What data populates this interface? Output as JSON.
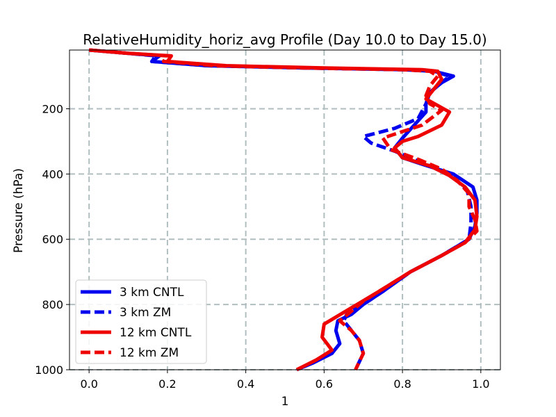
{
  "chart_data": {
    "type": "line",
    "title": "RelativeHumidity_horiz_avg Profile (Day 10.0 to Day 15.0)",
    "xlabel": "1",
    "ylabel": "Pressure (hPa)",
    "xlim": [
      -0.05,
      1.05
    ],
    "ylim": [
      1000,
      20
    ],
    "y_inverted": true,
    "grid": true,
    "xticks": [
      0.0,
      0.2,
      0.4,
      0.6,
      0.8,
      1.0
    ],
    "xtick_labels": [
      "0.0",
      "0.2",
      "0.4",
      "0.6",
      "0.8",
      "1.0"
    ],
    "yticks": [
      200,
      400,
      600,
      800,
      1000
    ],
    "ytick_labels": [
      "200",
      "400",
      "600",
      "800",
      "1000"
    ],
    "legend_position": "lower-left",
    "series": [
      {
        "name": "3 km CNTL",
        "color": "#0000ee",
        "dash": "solid",
        "points": [
          [
            0.0,
            20
          ],
          [
            0.1,
            30
          ],
          [
            0.18,
            38
          ],
          [
            0.16,
            55
          ],
          [
            0.3,
            68
          ],
          [
            0.55,
            75
          ],
          [
            0.8,
            80
          ],
          [
            0.88,
            85
          ],
          [
            0.93,
            100
          ],
          [
            0.9,
            120
          ],
          [
            0.87,
            150
          ],
          [
            0.86,
            185
          ],
          [
            0.86,
            210
          ],
          [
            0.83,
            250
          ],
          [
            0.8,
            290
          ],
          [
            0.78,
            320
          ],
          [
            0.8,
            350
          ],
          [
            0.85,
            370
          ],
          [
            0.93,
            400
          ],
          [
            0.98,
            440
          ],
          [
            0.99,
            480
          ],
          [
            0.99,
            520
          ],
          [
            0.985,
            560
          ],
          [
            0.97,
            600
          ],
          [
            0.9,
            650
          ],
          [
            0.82,
            700
          ],
          [
            0.75,
            760
          ],
          [
            0.7,
            800
          ],
          [
            0.67,
            830
          ],
          [
            0.635,
            850
          ],
          [
            0.63,
            880
          ],
          [
            0.64,
            920
          ],
          [
            0.62,
            950
          ],
          [
            0.57,
            980
          ],
          [
            0.53,
            1000
          ]
        ]
      },
      {
        "name": "3 km ZM",
        "color": "#0000ee",
        "dash": "dashed",
        "points": [
          [
            0.0,
            20
          ],
          [
            0.1,
            30
          ],
          [
            0.17,
            38
          ],
          [
            0.16,
            55
          ],
          [
            0.3,
            68
          ],
          [
            0.55,
            75
          ],
          [
            0.8,
            80
          ],
          [
            0.88,
            85
          ],
          [
            0.92,
            100
          ],
          [
            0.9,
            120
          ],
          [
            0.87,
            150
          ],
          [
            0.86,
            185
          ],
          [
            0.84,
            230
          ],
          [
            0.78,
            260
          ],
          [
            0.7,
            285
          ],
          [
            0.72,
            305
          ],
          [
            0.78,
            330
          ],
          [
            0.87,
            375
          ],
          [
            0.93,
            410
          ],
          [
            0.965,
            450
          ],
          [
            0.975,
            500
          ],
          [
            0.975,
            550
          ],
          [
            0.97,
            600
          ],
          [
            0.9,
            650
          ],
          [
            0.82,
            700
          ],
          [
            0.75,
            760
          ],
          [
            0.7,
            800
          ],
          [
            0.66,
            825
          ],
          [
            0.65,
            850
          ],
          [
            0.67,
            880
          ],
          [
            0.69,
            910
          ],
          [
            0.7,
            950
          ],
          [
            0.69,
            975
          ],
          [
            0.68,
            1000
          ]
        ]
      },
      {
        "name": "12 km CNTL",
        "color": "#ee0000",
        "dash": "solid",
        "points": [
          [
            0.0,
            20
          ],
          [
            0.1,
            30
          ],
          [
            0.21,
            38
          ],
          [
            0.2,
            55
          ],
          [
            0.35,
            68
          ],
          [
            0.6,
            75
          ],
          [
            0.85,
            80
          ],
          [
            0.89,
            85
          ],
          [
            0.9,
            110
          ],
          [
            0.88,
            140
          ],
          [
            0.86,
            170
          ],
          [
            0.89,
            190
          ],
          [
            0.92,
            210
          ],
          [
            0.9,
            250
          ],
          [
            0.84,
            285
          ],
          [
            0.8,
            300
          ],
          [
            0.78,
            320
          ],
          [
            0.8,
            350
          ],
          [
            0.87,
            375
          ],
          [
            0.92,
            405
          ],
          [
            0.96,
            440
          ],
          [
            0.985,
            480
          ],
          [
            0.99,
            530
          ],
          [
            0.985,
            570
          ],
          [
            0.96,
            610
          ],
          [
            0.9,
            650
          ],
          [
            0.82,
            700
          ],
          [
            0.74,
            760
          ],
          [
            0.67,
            810
          ],
          [
            0.6,
            860
          ],
          [
            0.595,
            900
          ],
          [
            0.62,
            940
          ],
          [
            0.58,
            970
          ],
          [
            0.53,
            1000
          ]
        ]
      },
      {
        "name": "12 km ZM",
        "color": "#ee0000",
        "dash": "dashed",
        "points": [
          [
            0.0,
            20
          ],
          [
            0.1,
            30
          ],
          [
            0.2,
            38
          ],
          [
            0.19,
            55
          ],
          [
            0.32,
            68
          ],
          [
            0.55,
            75
          ],
          [
            0.8,
            80
          ],
          [
            0.87,
            85
          ],
          [
            0.89,
            100
          ],
          [
            0.87,
            130
          ],
          [
            0.86,
            160
          ],
          [
            0.87,
            185
          ],
          [
            0.9,
            205
          ],
          [
            0.85,
            250
          ],
          [
            0.8,
            270
          ],
          [
            0.75,
            290
          ],
          [
            0.77,
            325
          ],
          [
            0.84,
            355
          ],
          [
            0.9,
            385
          ],
          [
            0.94,
            420
          ],
          [
            0.97,
            460
          ],
          [
            0.97,
            500
          ],
          [
            0.985,
            540
          ],
          [
            0.99,
            575
          ],
          [
            0.96,
            610
          ],
          [
            0.9,
            650
          ],
          [
            0.82,
            700
          ],
          [
            0.74,
            760
          ],
          [
            0.7,
            790
          ],
          [
            0.66,
            830
          ],
          [
            0.64,
            850
          ],
          [
            0.67,
            880
          ],
          [
            0.69,
            910
          ],
          [
            0.7,
            950
          ],
          [
            0.69,
            975
          ],
          [
            0.68,
            1000
          ]
        ]
      }
    ]
  }
}
